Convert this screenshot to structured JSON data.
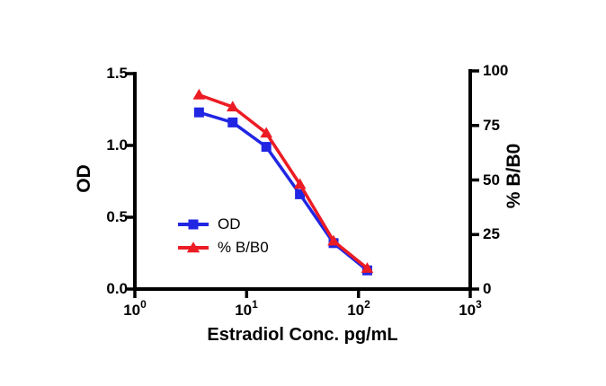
{
  "figure": {
    "background": "#ffffff"
  },
  "chart_data": {
    "type": "line",
    "title": "",
    "grid": false,
    "x_axis": {
      "label": "Estradiol Conc. pg/mL",
      "scale": "log10",
      "range": [
        1,
        1000
      ],
      "ticks": [
        {
          "base": "10",
          "exp": "0"
        },
        {
          "base": "10",
          "exp": "1"
        },
        {
          "base": "10",
          "exp": "2"
        },
        {
          "base": "10",
          "exp": "3"
        }
      ]
    },
    "y_left_axis": {
      "label": "OD",
      "range": [
        0,
        1.5
      ],
      "ticks": [
        "1.5",
        "1.0",
        "0.5",
        "0.0"
      ]
    },
    "y_right_axis": {
      "label": "% B/B0",
      "range": [
        0,
        100
      ],
      "ticks": [
        "100",
        "75",
        "50",
        "25",
        "0"
      ]
    },
    "x_values": [
      3.75,
      7.5,
      15,
      30,
      60,
      120
    ],
    "series": [
      {
        "name": "OD",
        "axis": "left",
        "marker": "square",
        "color": "#2126e3",
        "values": [
          1.23,
          1.16,
          0.99,
          0.66,
          0.32,
          0.13
        ]
      },
      {
        "name": "% B/B0",
        "axis": "right",
        "marker": "triangle-up",
        "color": "#ec1c24",
        "values": [
          89,
          83.5,
          71.5,
          48,
          22,
          9.5
        ]
      }
    ],
    "legend": {
      "position": "inside-bottom-left",
      "entries": [
        "OD",
        "% B/B0"
      ]
    }
  }
}
